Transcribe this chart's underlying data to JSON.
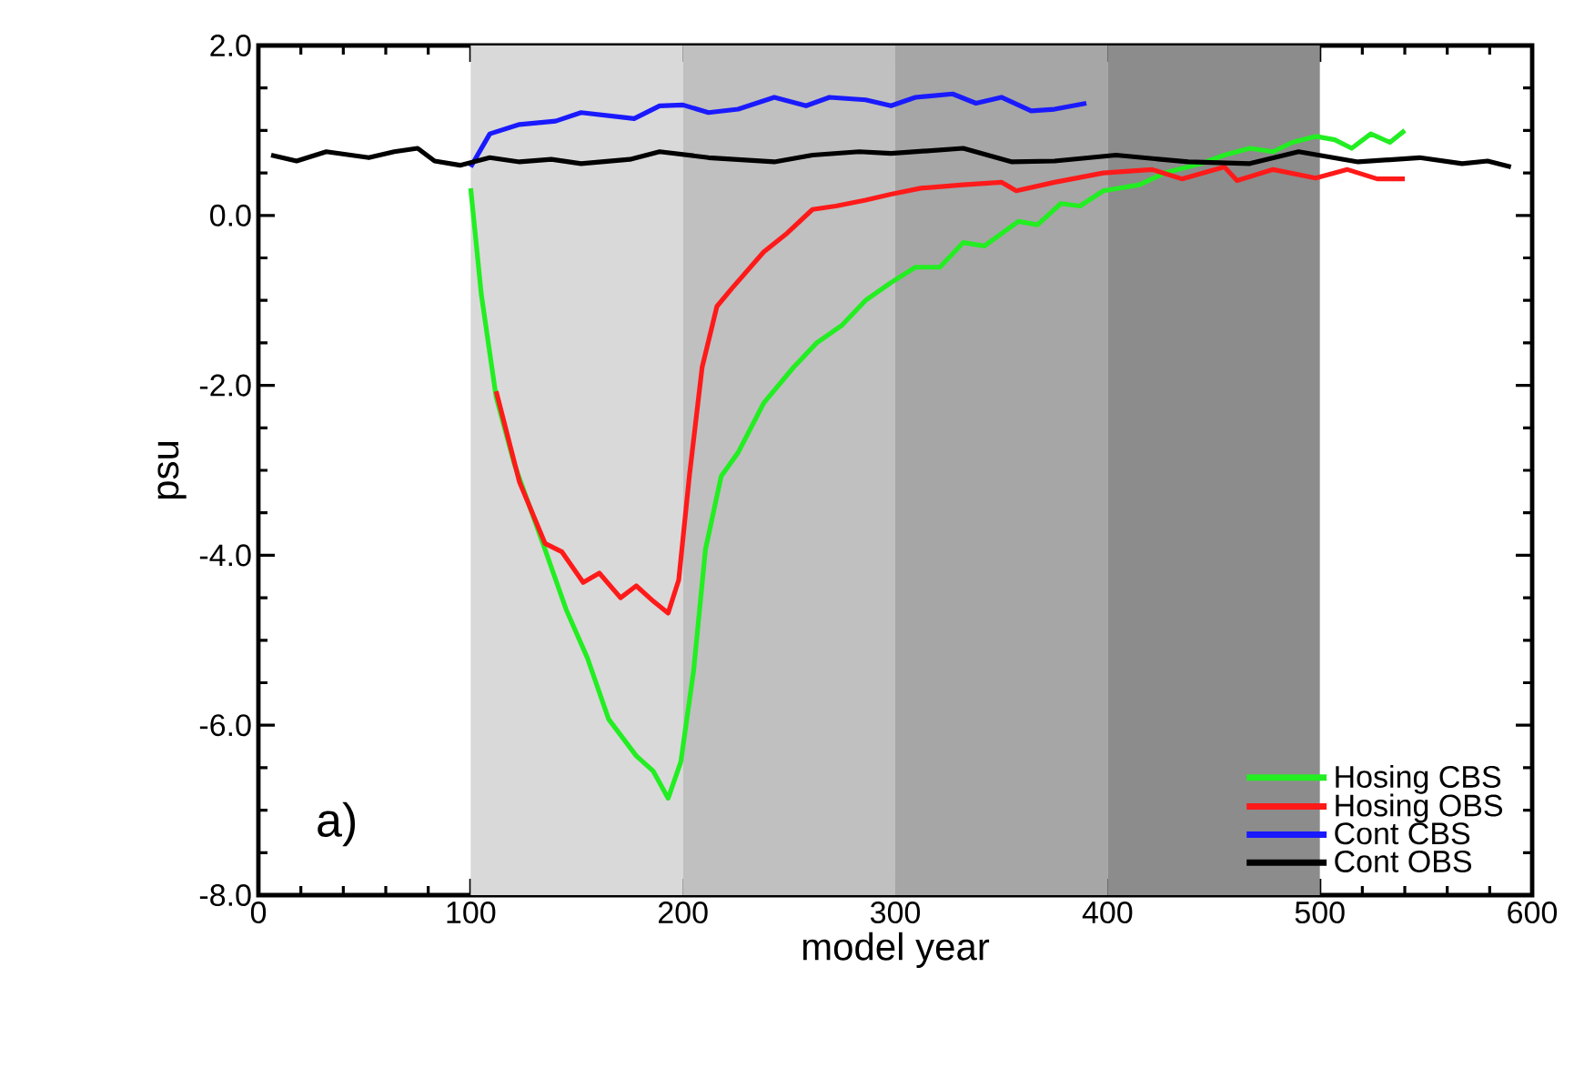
{
  "chart_data": {
    "type": "line",
    "xlabel": "model year",
    "ylabel": "psu",
    "xlim": [
      0,
      600
    ],
    "ylim": [
      -8,
      2
    ],
    "xticks": [
      0,
      100,
      200,
      300,
      400,
      500,
      600
    ],
    "yticks": [
      {
        "value": -8,
        "label": "-8.0"
      },
      {
        "value": -6,
        "label": "-6.0"
      },
      {
        "value": -4,
        "label": "-4.0"
      },
      {
        "value": -2,
        "label": "-2.0"
      },
      {
        "value": 0,
        "label": "0.0"
      },
      {
        "value": 2,
        "label": "2.0"
      }
    ],
    "grid": false,
    "legend": "bottom right",
    "line_style": "solid",
    "marker": "none",
    "annotations": [
      "a)"
    ],
    "bands": [
      {
        "axis": "x",
        "from": 100,
        "to": 200,
        "color": "#d9d9d9"
      },
      {
        "axis": "x",
        "from": 200,
        "to": 300,
        "color": "#c0c0c0"
      },
      {
        "axis": "x",
        "from": 300,
        "to": 400,
        "color": "#a6a6a6"
      },
      {
        "axis": "x",
        "from": 400,
        "to": 500,
        "color": "#8c8c8c"
      }
    ],
    "series": [
      {
        "name": "Hosing CBS",
        "color": "#22ee22",
        "x": [
          100,
          105,
          112,
          120.6,
          135,
          145,
          155,
          165,
          178,
          186,
          193,
          199,
          205,
          210.6,
          218,
          226,
          238,
          252,
          263,
          275,
          286,
          298,
          309.5,
          321,
          332,
          342,
          358,
          367,
          378,
          387,
          398,
          415,
          427,
          444,
          455,
          467,
          478,
          487,
          498,
          507,
          515,
          524,
          533,
          540
        ],
        "values": [
          0.32,
          -0.93,
          -2.14,
          -2.93,
          -3.93,
          -4.64,
          -5.21,
          -5.93,
          -6.36,
          -6.54,
          -6.86,
          -6.43,
          -5.36,
          -3.93,
          -3.07,
          -2.79,
          -2.21,
          -1.79,
          -1.5,
          -1.29,
          -1.0,
          -0.79,
          -0.61,
          -0.61,
          -0.32,
          -0.36,
          -0.07,
          -0.11,
          0.14,
          0.11,
          0.29,
          0.36,
          0.5,
          0.61,
          0.71,
          0.79,
          0.75,
          0.86,
          0.93,
          0.89,
          0.79,
          0.96,
          0.86,
          1.0
        ]
      },
      {
        "name": "Hosing OBS",
        "color": "#ff1a1a",
        "x": [
          112,
          123,
          135,
          143,
          153,
          160.6,
          170.6,
          178,
          186,
          193,
          198,
          203,
          209,
          216,
          223,
          238,
          249,
          261,
          272,
          286,
          298,
          312,
          332,
          350,
          357,
          375,
          398,
          421,
          435,
          455,
          461,
          478,
          498,
          513,
          527,
          540
        ],
        "values": [
          -2.07,
          -3.14,
          -3.86,
          -3.96,
          -4.32,
          -4.21,
          -4.5,
          -4.36,
          -4.54,
          -4.68,
          -4.29,
          -3.07,
          -1.79,
          -1.07,
          -0.86,
          -0.43,
          -0.21,
          0.07,
          0.11,
          0.18,
          0.25,
          0.32,
          0.36,
          0.39,
          0.29,
          0.39,
          0.5,
          0.54,
          0.43,
          0.57,
          0.41,
          0.54,
          0.44,
          0.54,
          0.43,
          0.43
        ]
      },
      {
        "name": "Cont CBS",
        "color": "#1a1aff",
        "x": [
          100,
          109,
          123,
          140,
          152,
          177,
          189,
          200,
          212,
          226,
          243,
          258,
          269,
          286,
          298,
          309.5,
          327,
          338,
          350,
          364,
          375,
          390
        ],
        "values": [
          0.57,
          0.96,
          1.07,
          1.11,
          1.21,
          1.14,
          1.29,
          1.3,
          1.21,
          1.25,
          1.39,
          1.29,
          1.39,
          1.36,
          1.29,
          1.39,
          1.43,
          1.32,
          1.39,
          1.23,
          1.25,
          1.32
        ]
      },
      {
        "name": "Cont OBS",
        "color": "#000000",
        "x": [
          6,
          18,
          32,
          52,
          64,
          75,
          83,
          95,
          109,
          123,
          138,
          152,
          175,
          189,
          212,
          243,
          261,
          283,
          298,
          332,
          355,
          375,
          404,
          438,
          467,
          490,
          518,
          547,
          567,
          579,
          590
        ],
        "values": [
          0.71,
          0.64,
          0.75,
          0.68,
          0.75,
          0.79,
          0.64,
          0.59,
          0.68,
          0.63,
          0.66,
          0.61,
          0.66,
          0.75,
          0.68,
          0.63,
          0.71,
          0.75,
          0.73,
          0.79,
          0.63,
          0.64,
          0.71,
          0.63,
          0.61,
          0.75,
          0.63,
          0.68,
          0.61,
          0.64,
          0.57
        ]
      }
    ]
  }
}
